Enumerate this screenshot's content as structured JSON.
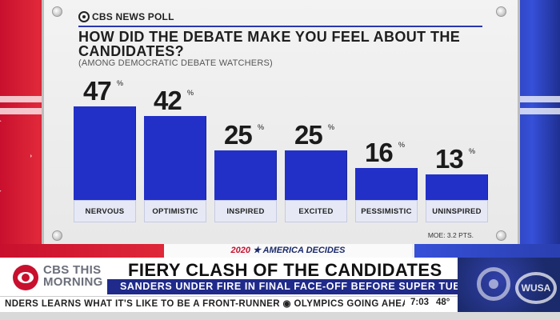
{
  "brand": "CBS NEWS POLL",
  "chart_data": {
    "type": "bar",
    "title": "HOW DID THE DEBATE MAKE YOU FEEL ABOUT THE CANDIDATES?",
    "subtitle": "(AMONG DEMOCRATIC DEBATE WATCHERS)",
    "categories": [
      "NERVOUS",
      "OPTIMISTIC",
      "INSPIRED",
      "EXCITED",
      "PESSIMISTIC",
      "UNINSPIRED"
    ],
    "values": [
      47,
      42,
      25,
      25,
      16,
      13
    ],
    "value_suffix": "%",
    "ylim": [
      0,
      60
    ],
    "grid": false,
    "bar_color": "#2230c8",
    "note": "MOE: 3.2 PTS."
  },
  "band": {
    "year": "2020",
    "text": "AMERICA DECIDES"
  },
  "lower_third": {
    "show_line1": "CBS THIS",
    "show_line2": "MORNING",
    "headline": "FIERY CLASH OF THE CANDIDATES",
    "subheadline": "SANDERS UNDER FIRE IN FINAL FACE-OFF BEFORE SUPER TUESDAY",
    "station": "WUSA"
  },
  "ticker": {
    "text": "NDERS LEARNS WHAT IT'S LIKE TO BE A FRONT-RUNNER ◉ OLYMPICS GOING AHEAD AS I",
    "time": "7:03",
    "temp": "48°"
  }
}
